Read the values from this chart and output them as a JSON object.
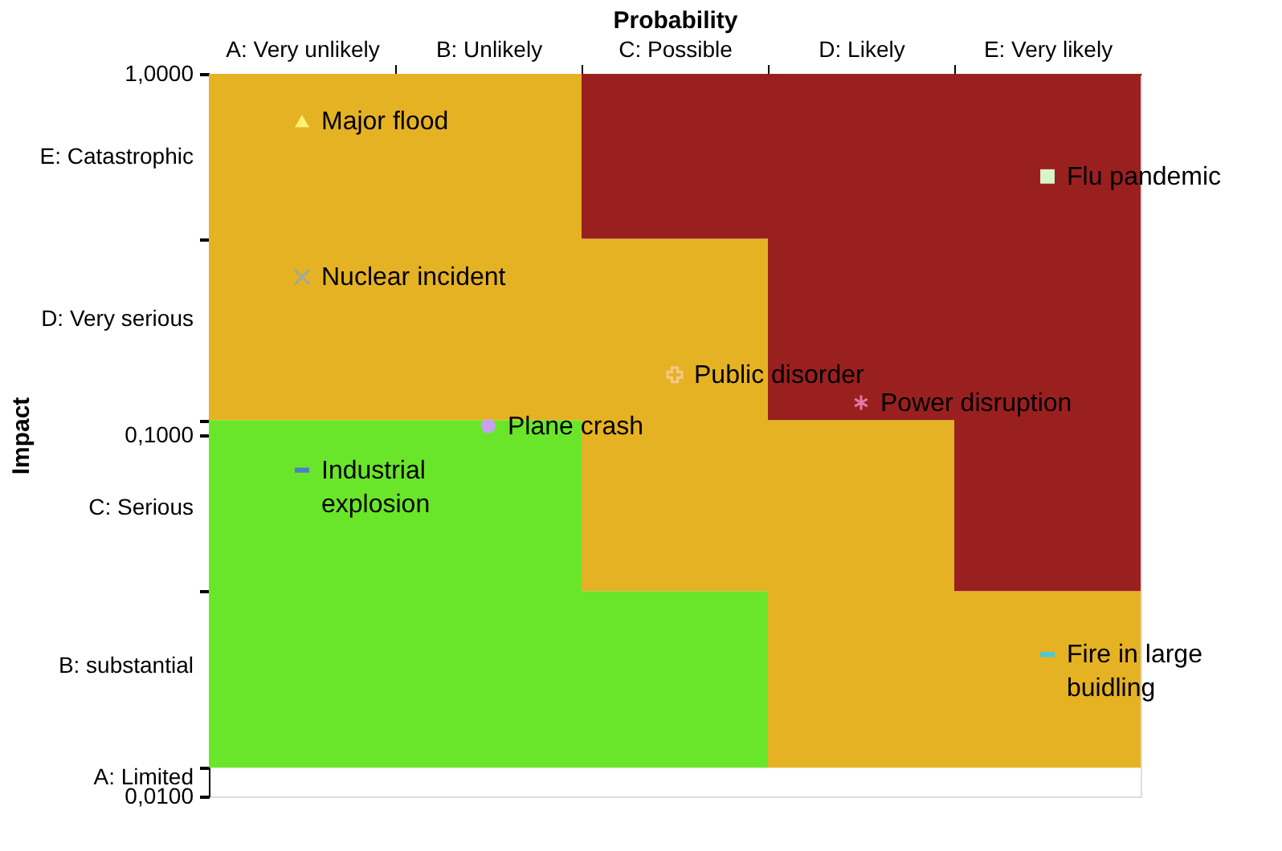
{
  "chart_data": {
    "type": "bar",
    "xlabel": "Probability",
    "ylabel": "Impact",
    "log": "y",
    "categories": [
      "A: Very unlikely",
      "B: Unlikely",
      "C: Possible",
      "D: Likely",
      "E: Very likely"
    ],
    "ylim": [
      0.01,
      1
    ],
    "yticks": [
      {
        "value": 1,
        "label": "1,0000"
      },
      {
        "value": 0.59,
        "label": "E: Catastrophic"
      },
      {
        "value": 0.35,
        "label": null
      },
      {
        "value": 0.21,
        "label": "D: Very serious"
      },
      {
        "value": 0.11,
        "label": null
      },
      {
        "value": 0.1,
        "label": "0,1000"
      },
      {
        "value": 0.063,
        "label": "C: Serious"
      },
      {
        "value": 0.037,
        "label": null
      },
      {
        "value": 0.023,
        "label": "B: substantial"
      },
      {
        "value": 0.012,
        "label": null
      },
      {
        "value": 0.0113,
        "label": "A: Limited"
      },
      {
        "value": 0.01,
        "label": "0,0100"
      }
    ],
    "grid": false,
    "legend": false,
    "series": [
      {
        "color": "#6ae62a",
        "base": [
          0.012,
          0.012,
          0.012,
          null,
          null
        ],
        "values": [
          0.098,
          0.098,
          0.025,
          null,
          null
        ]
      },
      {
        "color": "#e5b224",
        "base": [
          0.11,
          0.11,
          0.037,
          0.012,
          0.012
        ],
        "values": [
          0.89,
          0.89,
          0.313,
          0.098,
          0.025
        ]
      },
      {
        "color": "#9a2020",
        "base": [
          null,
          null,
          0.35,
          0.11,
          0.037
        ],
        "values": [
          null,
          null,
          0.65,
          0.89,
          0.963
        ]
      },
      {
        "type": "scatter",
        "name": "Major flood",
        "color": "#fff176",
        "marker": "triangle",
        "x": [
          "A: Very unlikely"
        ],
        "values": [
          0.74
        ]
      },
      {
        "type": "scatter",
        "name": "Flu pandemic",
        "color": "#d8f5c8",
        "marker": "square",
        "x": [
          "E: Very likely"
        ],
        "values": [
          0.52
        ]
      },
      {
        "type": "scatter",
        "name": "Nuclear incident",
        "color": "#a0a8a0",
        "marker": "x",
        "x": [
          "A: Very unlikely"
        ],
        "values": [
          0.274
        ]
      },
      {
        "type": "scatter",
        "name": "Public disorder",
        "color": "#f5c98a",
        "marker": "plus",
        "x": [
          "C: Possible"
        ],
        "values": [
          0.147
        ]
      },
      {
        "type": "scatter",
        "name": "Power disruption",
        "color": "#e07aa8",
        "marker": "cross",
        "x": [
          "D: Likely"
        ],
        "values": [
          0.123
        ]
      },
      {
        "type": "scatter",
        "name": "Plane crash",
        "color": "#c9a0f0",
        "marker": "circle",
        "x": [
          "B: Unlikely"
        ],
        "values": [
          0.106
        ]
      },
      {
        "type": "scatter",
        "name": "Industrial\nexplosion",
        "color": "#4a7fc8",
        "x": [
          "A: Very unlikely"
        ],
        "values": [
          0.08
        ]
      },
      {
        "type": "scatter",
        "name": "Fire in large\nbuidling",
        "color": "#4ac8d8",
        "x": [
          "E: Very likely"
        ],
        "values": [
          0.0247
        ]
      }
    ]
  }
}
